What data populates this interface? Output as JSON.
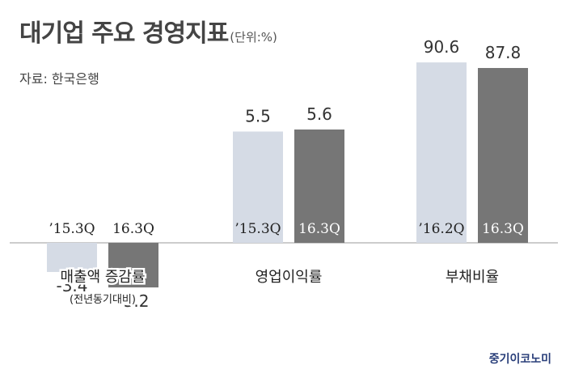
{
  "title": "대기업 주요 경영지표",
  "unit": "(단위:%)",
  "source": "자료: 한국은행",
  "brand": "중기이코노미",
  "colors": {
    "light": "#d5dbe5",
    "dark": "#767676",
    "axis": "#bbbbbb"
  },
  "chart_data": {
    "type": "bar",
    "title": "대기업 주요 경영지표",
    "unit": "(단위:%)",
    "groups": [
      {
        "label": "매출액 증감률",
        "sublabel": "(전년동기대비)",
        "bars": [
          {
            "period": "’15.3Q",
            "value": -3.4
          },
          {
            "period": "16.3Q",
            "value": -5.2
          }
        ]
      },
      {
        "label": "영업이익률",
        "bars": [
          {
            "period": "’15.3Q",
            "value": 5.5
          },
          {
            "period": "16.3Q",
            "value": 5.6
          }
        ]
      },
      {
        "label": "부채비율",
        "bars": [
          {
            "period": "’16.2Q",
            "value": 90.6
          },
          {
            "period": "16.3Q",
            "value": 87.8
          }
        ]
      }
    ]
  }
}
